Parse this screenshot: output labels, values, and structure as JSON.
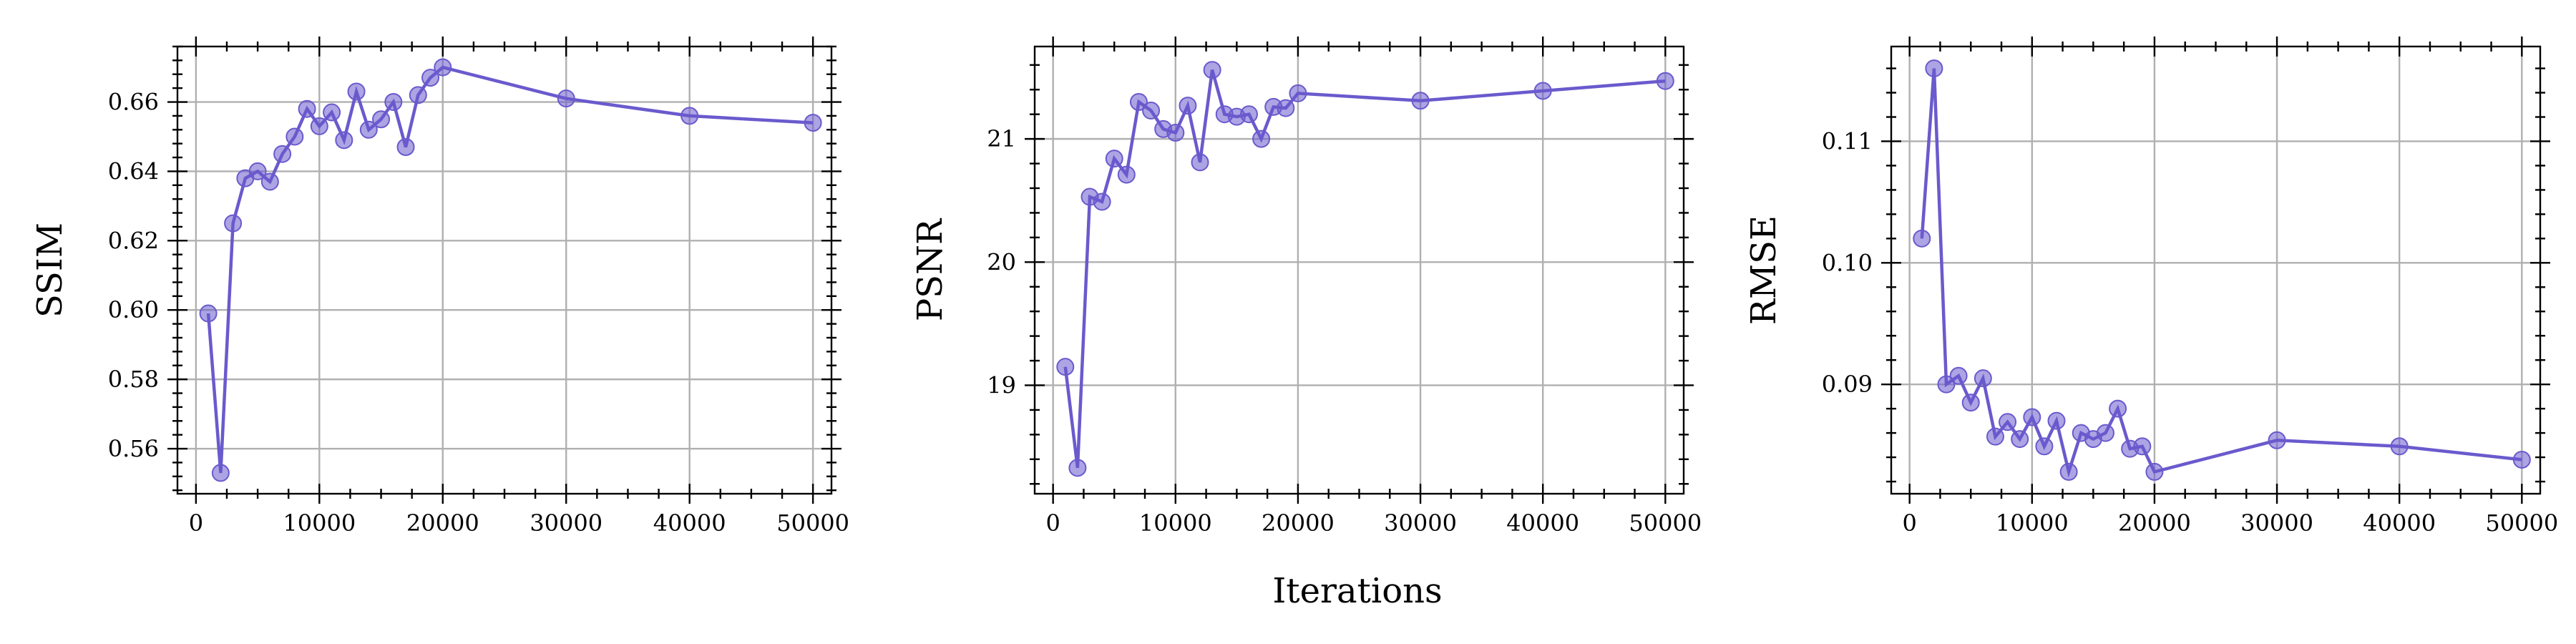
{
  "figure": {
    "shared_xlabel": "Iterations",
    "line_color": "#6a5acd",
    "marker_fill": "rgba(106,90,205,0.55)"
  },
  "chart_data": [
    {
      "type": "line",
      "title": "",
      "xlabel": "",
      "ylabel": "SSIM",
      "xlim": [
        -1500,
        51500
      ],
      "ylim": [
        0.547,
        0.676
      ],
      "xticks": [
        0,
        10000,
        20000,
        30000,
        40000,
        50000
      ],
      "xtick_labels": [
        "0",
        "10000",
        "20000",
        "30000",
        "40000",
        "50000"
      ],
      "yticks": [
        0.56,
        0.58,
        0.6,
        0.62,
        0.64,
        0.66
      ],
      "ytick_labels": [
        "0.56",
        "0.58",
        "0.60",
        "0.62",
        "0.64",
        "0.66"
      ],
      "grid": true,
      "x": [
        1000,
        2000,
        3000,
        4000,
        5000,
        6000,
        7000,
        8000,
        9000,
        10000,
        11000,
        12000,
        13000,
        14000,
        15000,
        16000,
        17000,
        18000,
        19000,
        20000,
        30000,
        40000,
        50000
      ],
      "values": [
        0.599,
        0.553,
        0.625,
        0.638,
        0.64,
        0.637,
        0.645,
        0.65,
        0.658,
        0.653,
        0.657,
        0.649,
        0.663,
        0.652,
        0.655,
        0.66,
        0.647,
        0.662,
        0.667,
        0.67,
        0.661,
        0.656,
        0.654
      ]
    },
    {
      "type": "line",
      "title": "",
      "xlabel": "Iterations",
      "ylabel": "PSNR",
      "xlim": [
        -1500,
        51500
      ],
      "ylim": [
        18.12,
        21.75
      ],
      "xticks": [
        0,
        10000,
        20000,
        30000,
        40000,
        50000
      ],
      "xtick_labels": [
        "0",
        "10000",
        "20000",
        "30000",
        "40000",
        "50000"
      ],
      "yticks": [
        19,
        20,
        21
      ],
      "ytick_labels": [
        "19",
        "20",
        "21"
      ],
      "grid": true,
      "x": [
        1000,
        2000,
        3000,
        4000,
        5000,
        6000,
        7000,
        8000,
        9000,
        10000,
        11000,
        12000,
        13000,
        14000,
        15000,
        16000,
        17000,
        18000,
        19000,
        20000,
        30000,
        40000,
        50000
      ],
      "values": [
        19.15,
        18.33,
        20.53,
        20.49,
        20.84,
        20.71,
        21.3,
        21.23,
        21.08,
        21.05,
        21.27,
        20.81,
        21.56,
        21.2,
        21.18,
        21.2,
        21.0,
        21.26,
        21.25,
        21.37,
        21.31,
        21.39,
        21.47
      ]
    },
    {
      "type": "line",
      "title": "",
      "xlabel": "",
      "ylabel": "RMSE",
      "xlim": [
        -1500,
        51500
      ],
      "ylim": [
        0.081,
        0.1178
      ],
      "xticks": [
        0,
        10000,
        20000,
        30000,
        40000,
        50000
      ],
      "xtick_labels": [
        "0",
        "10000",
        "20000",
        "30000",
        "40000",
        "50000"
      ],
      "yticks": [
        0.09,
        0.1,
        0.11
      ],
      "ytick_labels": [
        "0.09",
        "0.10",
        "0.11"
      ],
      "grid": true,
      "x": [
        1000,
        2000,
        3000,
        4000,
        5000,
        6000,
        7000,
        8000,
        9000,
        10000,
        11000,
        12000,
        13000,
        14000,
        15000,
        16000,
        17000,
        18000,
        19000,
        20000,
        30000,
        40000,
        50000
      ],
      "values": [
        0.102,
        0.116,
        0.09,
        0.0907,
        0.0885,
        0.0905,
        0.0857,
        0.0869,
        0.0855,
        0.0873,
        0.0849,
        0.087,
        0.0828,
        0.086,
        0.0855,
        0.086,
        0.088,
        0.0847,
        0.0849,
        0.0828,
        0.0854,
        0.0849,
        0.0838
      ]
    }
  ]
}
